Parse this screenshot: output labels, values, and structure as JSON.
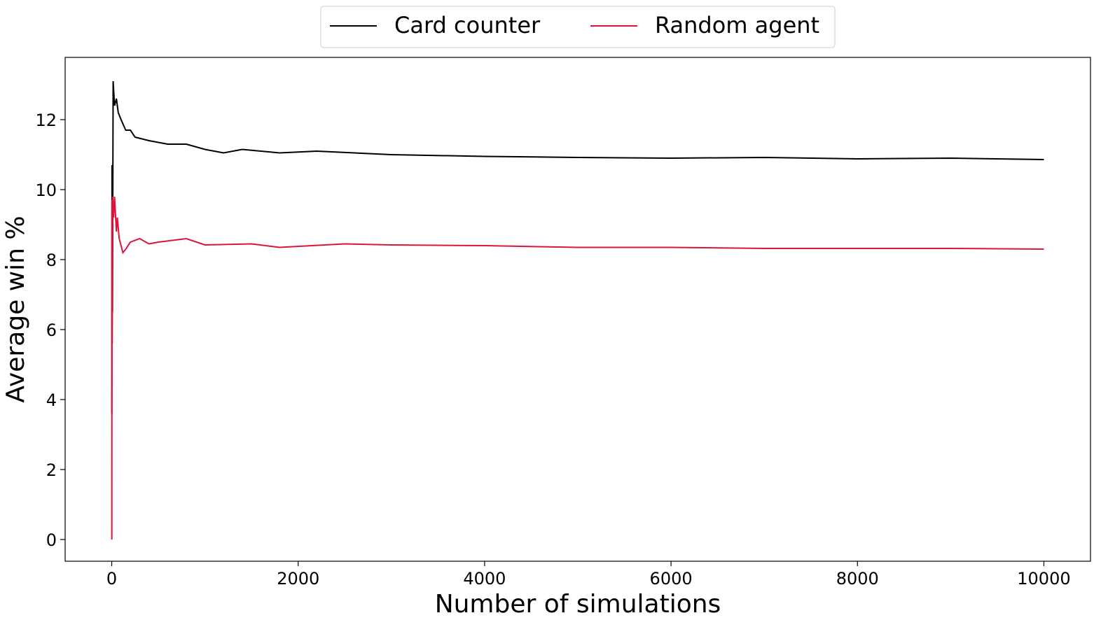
{
  "chart_data": {
    "type": "line",
    "xlabel": "Number of simulations",
    "ylabel": "Average win %",
    "xlim": [
      -500,
      10500
    ],
    "ylim": [
      -0.62,
      13.78
    ],
    "xticks": [
      0,
      2000,
      4000,
      6000,
      8000,
      10000
    ],
    "yticks": [
      0,
      2,
      4,
      6,
      8,
      10,
      12
    ],
    "legend": "top-center",
    "series": [
      {
        "name": "Card counter",
        "color": "#000000",
        "x": [
          1,
          3,
          8,
          15,
          30,
          50,
          70,
          100,
          150,
          200,
          250,
          400,
          600,
          800,
          1000,
          1200,
          1400,
          1800,
          2200,
          3000,
          4000,
          5000,
          6000,
          7000,
          8000,
          9000,
          10000
        ],
        "values": [
          3.6,
          10.7,
          6.5,
          13.1,
          12.4,
          12.6,
          12.2,
          12.0,
          11.7,
          11.7,
          11.5,
          11.4,
          11.3,
          11.3,
          11.15,
          11.05,
          11.15,
          11.05,
          11.1,
          11.0,
          10.95,
          10.92,
          10.9,
          10.92,
          10.88,
          10.9,
          10.86
        ]
      },
      {
        "name": "Random agent",
        "color": "#dc143c",
        "x": [
          1,
          2,
          5,
          10,
          20,
          30,
          50,
          60,
          80,
          120,
          150,
          200,
          300,
          400,
          500,
          800,
          1000,
          1500,
          1800,
          2500,
          3000,
          4000,
          5000,
          6000,
          7000,
          8000,
          9000,
          10000
        ],
        "values": [
          0,
          9.7,
          5.6,
          9.8,
          9.2,
          9.8,
          8.8,
          9.2,
          8.6,
          8.2,
          8.3,
          8.5,
          8.6,
          8.45,
          8.5,
          8.6,
          8.42,
          8.45,
          8.35,
          8.45,
          8.42,
          8.4,
          8.35,
          8.35,
          8.32,
          8.32,
          8.32,
          8.3
        ]
      }
    ]
  }
}
